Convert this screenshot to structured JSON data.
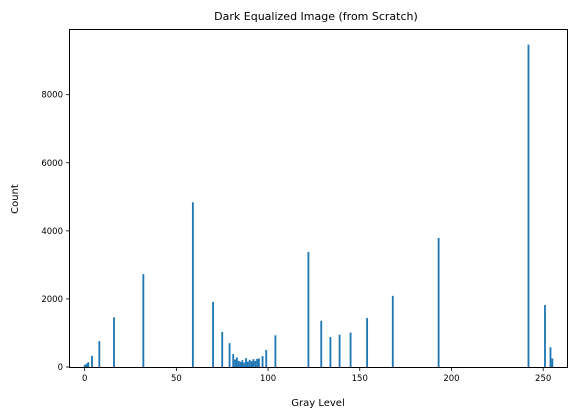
{
  "chart_data": {
    "type": "bar",
    "title": "Dark Equalized Image (from Scratch)",
    "xlabel": "Gray Level",
    "ylabel": "Count",
    "xlim": [
      -8,
      263
    ],
    "ylim": [
      0,
      9900
    ],
    "xticks": [
      0,
      50,
      100,
      150,
      200,
      250
    ],
    "yticks": [
      0,
      2000,
      4000,
      6000,
      8000
    ],
    "grid": false,
    "bar_color": "#1f77b4",
    "bar_width": 1,
    "x": [
      0,
      1,
      2,
      4,
      8,
      16,
      32,
      59,
      70,
      75,
      79,
      81,
      82,
      83,
      84,
      85,
      86,
      87,
      88,
      89,
      90,
      91,
      92,
      93,
      94,
      95,
      97,
      99,
      104,
      122,
      129,
      134,
      139,
      145,
      154,
      168,
      193,
      242,
      251,
      254,
      255
    ],
    "values": [
      60,
      100,
      140,
      330,
      760,
      1460,
      2730,
      4840,
      1910,
      1030,
      700,
      380,
      220,
      280,
      180,
      150,
      200,
      130,
      260,
      160,
      210,
      170,
      230,
      180,
      240,
      250,
      320,
      500,
      930,
      3380,
      1360,
      880,
      950,
      1010,
      1440,
      2090,
      3790,
      9470,
      1820,
      580,
      250
    ]
  }
}
